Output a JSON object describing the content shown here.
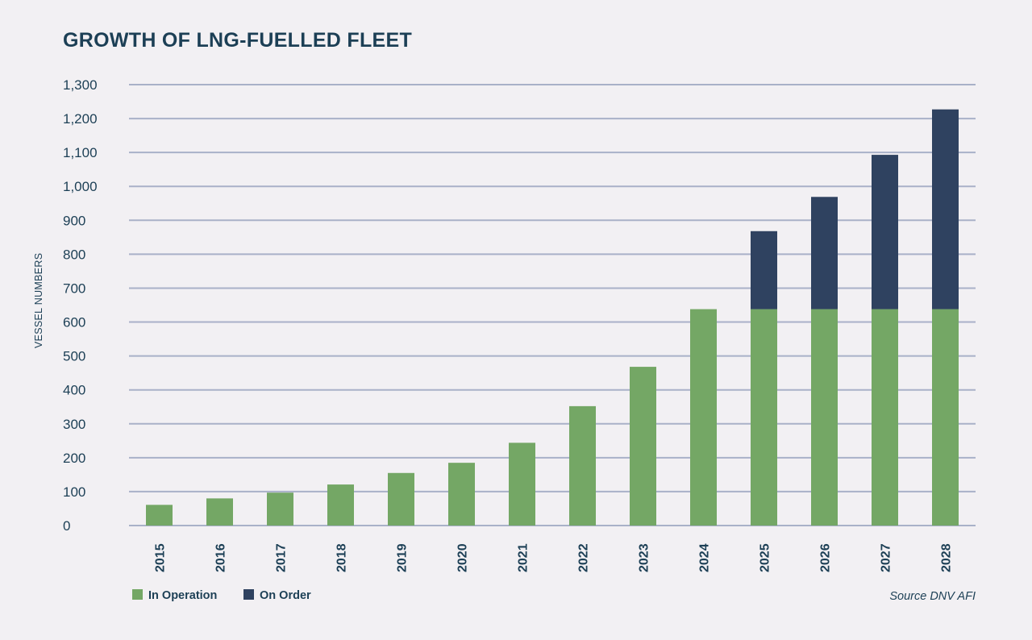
{
  "chart_data": {
    "type": "bar",
    "stacked": true,
    "title": "GROWTH OF LNG-FUELLED FLEET",
    "xlabel": "",
    "ylabel": "VESSEL NUMBERS",
    "ylim": [
      0,
      1300
    ],
    "yticks": [
      "0",
      "100",
      "200",
      "300",
      "400",
      "500",
      "600",
      "700",
      "800",
      "900",
      "1,000",
      "1,100",
      "1,200",
      "1,300"
    ],
    "grid": true,
    "legend_placement": "bottom-left",
    "categories": [
      "2015",
      "2016",
      "2017",
      "2018",
      "2019",
      "2020",
      "2021",
      "2022",
      "2023",
      "2024",
      "2025",
      "2026",
      "2027",
      "2028"
    ],
    "series": [
      {
        "name": "In Operation",
        "color": "#74a765",
        "values": [
          61,
          80,
          97,
          121,
          155,
          185,
          244,
          352,
          468,
          638,
          638,
          638,
          638,
          638
        ]
      },
      {
        "name": "On Order",
        "color": "#2f4260",
        "values": [
          0,
          0,
          0,
          0,
          0,
          0,
          0,
          0,
          0,
          0,
          230,
          331,
          455,
          589
        ]
      }
    ],
    "source": "Source DNV AFI"
  }
}
